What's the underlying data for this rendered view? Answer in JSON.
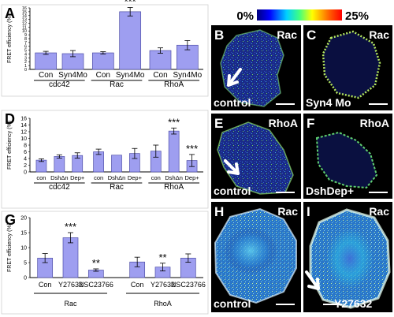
{
  "colorscale": {
    "min_label": "0%",
    "max_label": "25%"
  },
  "chart_data": [
    {
      "panel": "A",
      "type": "bar",
      "ylabel": "FRET efficiency (%)",
      "ylim": [
        0,
        16
      ],
      "yticks": [
        "0",
        "1",
        "2",
        "3",
        "4",
        "5",
        "6",
        "7",
        "8",
        "9",
        "10",
        "11",
        "12",
        "13",
        "14",
        "15",
        "16"
      ],
      "categories": [
        "Con",
        "Syn4Mo",
        "Con",
        "Syn4Mo",
        "Con",
        "Syn4Mo"
      ],
      "groups": [
        "cdc42",
        "Rac",
        "RhoA"
      ],
      "values": [
        4.3,
        4.1,
        4.3,
        15.0,
        4.9,
        6.3
      ],
      "errors": [
        0.4,
        0.8,
        0.3,
        1.1,
        0.7,
        1.2
      ],
      "annotations": [
        "",
        "",
        "",
        "***",
        "",
        ""
      ]
    },
    {
      "panel": "D",
      "type": "bar",
      "ylabel": "FRET efficiency (%)",
      "ylim": [
        0,
        16
      ],
      "yticks": [
        "0",
        "2",
        "4",
        "6",
        "8",
        "10",
        "12",
        "14",
        "16"
      ],
      "categories": [
        "con",
        "DshΔn",
        "Dep+",
        "con",
        "DshΔn",
        "Dep+",
        "con",
        "DshΔn",
        "Dep+"
      ],
      "groups": [
        "cdc42",
        "Rac",
        "RhoA"
      ],
      "values": [
        3.5,
        4.6,
        4.9,
        6.0,
        5.0,
        5.5,
        6.2,
        12.2,
        3.4
      ],
      "errors": [
        0.4,
        0.5,
        0.8,
        0.8,
        0.0,
        1.5,
        1.8,
        0.9,
        1.8
      ],
      "annotations": [
        "",
        "",
        "",
        "",
        "",
        "",
        "",
        "***",
        "***"
      ]
    },
    {
      "panel": "G",
      "type": "bar",
      "ylabel": "FRET efficiency (%)",
      "ylim": [
        0,
        20
      ],
      "yticks": [
        "0",
        "5",
        "10",
        "15",
        "20"
      ],
      "categories": [
        "Con",
        "Y27632",
        "NSC23766",
        "Con",
        "Y27632",
        "NSC23766"
      ],
      "groups": [
        "Rac",
        "RhoA"
      ],
      "values": [
        6.5,
        13.3,
        2.5,
        5.2,
        3.5,
        6.5
      ],
      "errors": [
        1.5,
        1.7,
        0.4,
        1.6,
        1.3,
        1.4
      ],
      "annotations": [
        "",
        "***",
        "**",
        "",
        "**",
        ""
      ]
    }
  ],
  "images": [
    {
      "panel": "B",
      "top_label": "Rac",
      "bottom_label": "control"
    },
    {
      "panel": "C",
      "top_label": "Rac",
      "bottom_label": "Syn4 Mo"
    },
    {
      "panel": "E",
      "top_label": "RhoA",
      "bottom_label": "control"
    },
    {
      "panel": "F",
      "top_label": "RhoA",
      "bottom_label": "DshDep+"
    },
    {
      "panel": "H",
      "top_label": "Rac",
      "bottom_label": "control"
    },
    {
      "panel": "I",
      "top_label": "Rac",
      "bottom_label": "Y27632"
    }
  ],
  "colors": {
    "bar_fill": "#9e9ef0",
    "bar_stroke": "#5050a8",
    "image_bg": "#000000",
    "cell_base": "#1c2f8c"
  }
}
